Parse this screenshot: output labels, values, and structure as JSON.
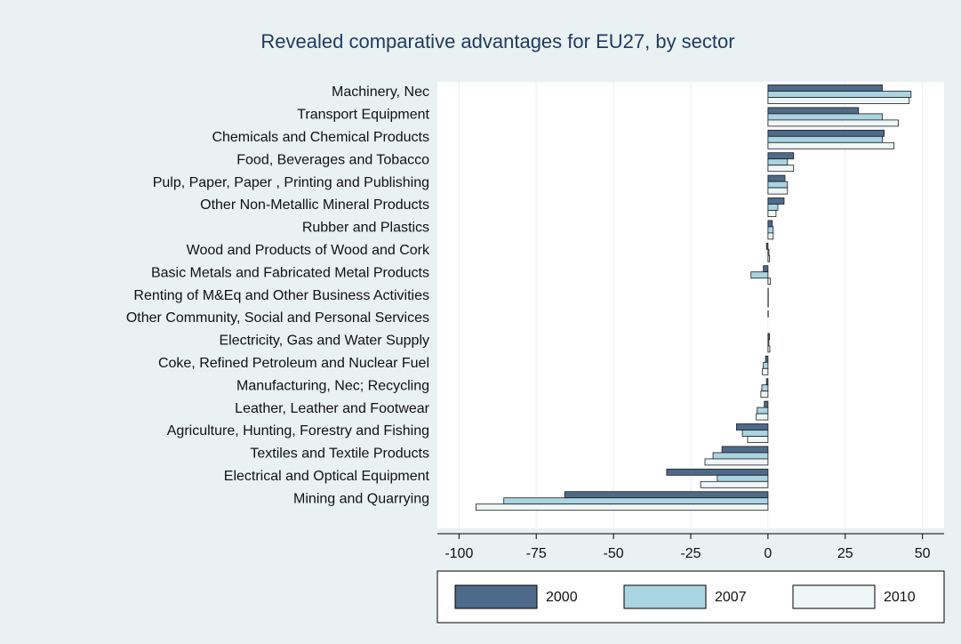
{
  "chart_data": {
    "type": "hbar",
    "title": "Revealed comparative advantages for EU27, by sector",
    "categories": [
      "Machinery, Nec",
      "Transport Equipment",
      "Chemicals and Chemical Products",
      "Food, Beverages and Tobacco",
      "Pulp, Paper, Paper , Printing and Publishing",
      "Other Non-Metallic Mineral Products",
      "Rubber and Plastics",
      "Wood and Products of Wood and Cork",
      "Basic Metals and Fabricated Metal Products",
      "Renting of M&Eq and Other Business Activities",
      "Other Community, Social and Personal Services",
      "Electricity, Gas and Water Supply",
      "Coke, Refined Petroleum and Nuclear Fuel",
      "Manufacturing, Nec; Recycling",
      "Leather, Leather and Footwear",
      "Agriculture, Hunting, Forestry and Fishing",
      "Textiles and Textile Products",
      "Electrical and Optical Equipment",
      "Mining and Quarrying"
    ],
    "series": [
      {
        "name": "2000",
        "color": "#4e6a8a",
        "values": [
          37,
          29.3,
          37.6,
          8.3,
          5.5,
          5.2,
          1.4,
          -0.5,
          -1.5,
          0.1,
          0.1,
          0.5,
          -0.8,
          -0.5,
          -1.2,
          -10.2,
          -14.9,
          -32.8,
          -65.8
        ]
      },
      {
        "name": "2007",
        "color": "#a9d4e2",
        "values": [
          46.3,
          37,
          37,
          6.3,
          6.3,
          3.2,
          1.7,
          0.3,
          -5.5,
          0.1,
          0,
          0.3,
          -1.5,
          -2,
          -3.5,
          -8.3,
          -17.8,
          -16.4,
          -85.5
        ]
      },
      {
        "name": "2010",
        "color": "#eef6f6",
        "values": [
          45.7,
          42.2,
          40.8,
          8.3,
          6.3,
          2.6,
          1.7,
          0.5,
          0.8,
          0.1,
          0,
          0.6,
          -1.8,
          -2.3,
          -3.8,
          -6.6,
          -20.4,
          -21.8,
          -94.5
        ]
      }
    ],
    "xlim": [
      -107,
      57
    ],
    "xticks": [
      -100,
      -75,
      -50,
      -25,
      0,
      25,
      50
    ],
    "grid": true,
    "legend": "bottom"
  }
}
